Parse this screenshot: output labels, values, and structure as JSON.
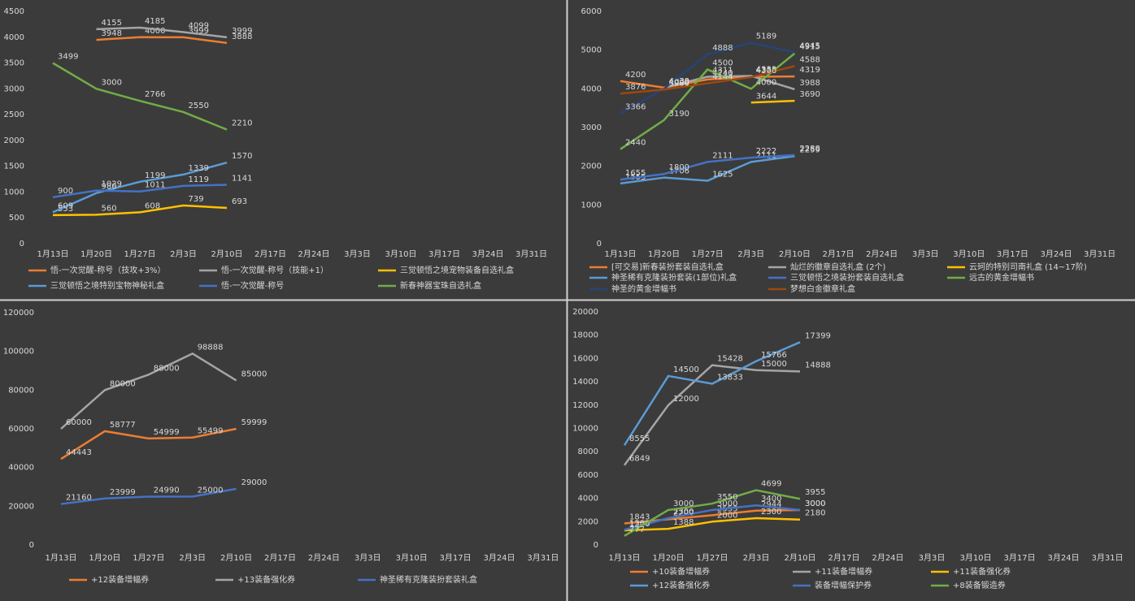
{
  "chart_data": [
    {
      "type": "line",
      "categories": [
        "1月13日",
        "1月20日",
        "1月27日",
        "2月3日",
        "2月10日",
        "2月17日",
        "2月24日",
        "3月3日",
        "3月10日",
        "3月17日",
        "3月24日",
        "3月31日"
      ],
      "ylim": [
        0,
        4500
      ],
      "yticks": [
        0,
        500,
        1000,
        1500,
        2000,
        2500,
        3000,
        3500,
        4000,
        4500
      ],
      "series": [
        {
          "name": "悟-一次觉醒-称号（技攻+3%）",
          "color": "#ed7d31",
          "values": [
            null,
            3948,
            4000,
            3999,
            3888,
            null,
            null,
            null,
            null,
            null,
            null,
            null
          ]
        },
        {
          "name": "悟-一次觉醒-称号（技能+1）",
          "color": "#a5a5a5",
          "values": [
            null,
            4155,
            4185,
            4099,
            3999,
            null,
            null,
            null,
            null,
            null,
            null,
            null
          ]
        },
        {
          "name": "三觉顿悟之境宠物装备自选礼盒",
          "color": "#ffc000",
          "values": [
            553,
            560,
            608,
            739,
            693,
            null,
            null,
            null,
            null,
            null,
            null,
            null
          ]
        },
        {
          "name": "三觉顿悟之境特别宝物神秘礼盒",
          "color": "#5b9bd5",
          "values": [
            609,
            980,
            1199,
            1339,
            1570,
            null,
            null,
            null,
            null,
            null,
            null,
            null
          ]
        },
        {
          "name": "悟-一次觉醒-称号",
          "color": "#4472c4",
          "values": [
            900,
            1029,
            1011,
            1119,
            1141,
            null,
            null,
            null,
            null,
            null,
            null,
            null
          ]
        },
        {
          "name": "新春神器宝珠自选礼盒",
          "color": "#70ad47",
          "values": [
            3499,
            3000,
            2766,
            2550,
            2210,
            null,
            null,
            null,
            null,
            null,
            null,
            null
          ]
        }
      ]
    },
    {
      "type": "line",
      "categories": [
        "1月13日",
        "1月20日",
        "1月27日",
        "2月3日",
        "2月10日",
        "2月17日",
        "2月24日",
        "3月3日",
        "3月10日",
        "3月17日",
        "3月24日",
        "3月31日"
      ],
      "ylim": [
        0,
        6000
      ],
      "yticks": [
        0,
        1000,
        2000,
        3000,
        4000,
        5000,
        6000
      ],
      "series": [
        {
          "name": "[可交易]新春装扮套装自选礼盒",
          "color": "#ed7d31",
          "values": [
            4200,
            4030,
            4240,
            4311,
            4319,
            null,
            null,
            null,
            null,
            null,
            null,
            null
          ]
        },
        {
          "name": "灿烂的徽章自选礼盒 (2个)",
          "color": "#a5a5a5",
          "values": [
            null,
            4030,
            4311,
            4333,
            3988,
            null,
            null,
            null,
            null,
            null,
            null,
            null
          ]
        },
        {
          "name": "云珂的特别司南礼盒 (14~17阶)",
          "color": "#ffc000",
          "values": [
            null,
            null,
            null,
            3644,
            3690,
            null,
            null,
            null,
            null,
            null,
            null,
            null
          ]
        },
        {
          "name": "神圣稀有克隆装扮套装(1部位)礼盒",
          "color": "#5b9bd5",
          "values": [
            1555,
            1706,
            1625,
            2111,
            2259,
            null,
            null,
            null,
            null,
            null,
            null,
            null
          ]
        },
        {
          "name": "三觉顿悟之境装扮套装自选礼盒",
          "color": "#4472c4",
          "values": [
            1655,
            1800,
            2111,
            2222,
            2288,
            null,
            null,
            null,
            null,
            null,
            null,
            null
          ]
        },
        {
          "name": "远古的黄金增幅书",
          "color": "#70ad47",
          "values": [
            2440,
            3190,
            4500,
            4000,
            4915,
            null,
            null,
            null,
            null,
            null,
            null,
            null
          ]
        },
        {
          "name": "神圣的黄金增幅书",
          "color": "#264478",
          "values": [
            3366,
            4000,
            4888,
            5189,
            4945,
            null,
            null,
            null,
            null,
            null,
            null,
            null
          ]
        },
        {
          "name": "梦想白金徽章礼盒",
          "color": "#9e480e",
          "values": [
            3876,
            3980,
            4144,
            4300,
            4588,
            null,
            null,
            null,
            null,
            null,
            null,
            null
          ]
        }
      ]
    },
    {
      "type": "line",
      "categories": [
        "1月13日",
        "1月20日",
        "1月27日",
        "2月3日",
        "2月10日",
        "2月17日",
        "2月24日",
        "3月3日",
        "3月10日",
        "3月17日",
        "3月24日",
        "3月31日"
      ],
      "ylim": [
        0,
        120000
      ],
      "yticks": [
        0,
        20000,
        40000,
        60000,
        80000,
        100000,
        120000
      ],
      "series": [
        {
          "name": "+12装备增幅券",
          "color": "#ed7d31",
          "values": [
            44443,
            58777,
            54999,
            55499,
            59999,
            null,
            null,
            null,
            null,
            null,
            null,
            null
          ]
        },
        {
          "name": "+13装备强化券",
          "color": "#a5a5a5",
          "values": [
            60000,
            80000,
            88000,
            98888,
            85000,
            null,
            null,
            null,
            null,
            null,
            null,
            null
          ]
        },
        {
          "name": "神圣稀有克隆装扮套装礼盒",
          "color": "#4472c4",
          "values": [
            21160,
            23999,
            24990,
            25000,
            29000,
            null,
            null,
            null,
            null,
            null,
            null,
            null
          ]
        }
      ]
    },
    {
      "type": "line",
      "categories": [
        "1月13日",
        "1月20日",
        "1月27日",
        "2月3日",
        "2月10日",
        "2月17日",
        "2月24日",
        "3月3日",
        "3月10日",
        "3月17日",
        "3月24日",
        "3月31日"
      ],
      "ylim": [
        0,
        20000
      ],
      "yticks": [
        0,
        2000,
        4000,
        6000,
        8000,
        10000,
        12000,
        14000,
        16000,
        18000,
        20000
      ],
      "series": [
        {
          "name": "+10装备增幅券",
          "color": "#ed7d31",
          "values": [
            1843,
            2200,
            2553,
            2944,
            3000,
            null,
            null,
            null,
            null,
            null,
            null,
            null
          ]
        },
        {
          "name": "+11装备增幅券",
          "color": "#a5a5a5",
          "values": [
            6849,
            12000,
            15428,
            15000,
            14888,
            null,
            null,
            null,
            null,
            null,
            null,
            null
          ]
        },
        {
          "name": "+11装备强化券",
          "color": "#ffc000",
          "values": [
            1250,
            1388,
            2000,
            2300,
            2180,
            null,
            null,
            null,
            null,
            null,
            null,
            null
          ]
        },
        {
          "name": "+12装备强化券",
          "color": "#5b9bd5",
          "values": [
            8555,
            14500,
            13833,
            15766,
            17399,
            null,
            null,
            null,
            null,
            null,
            null,
            null
          ]
        },
        {
          "name": "装备增幅保护券",
          "color": "#4472c4",
          "values": [
            1300,
            2300,
            3000,
            3400,
            3000,
            null,
            null,
            null,
            null,
            null,
            null,
            null
          ]
        },
        {
          "name": "+8装备锻造券",
          "color": "#70ad47",
          "values": [
            777,
            3000,
            3550,
            4699,
            3955,
            null,
            null,
            null,
            null,
            null,
            null,
            null
          ]
        }
      ]
    }
  ]
}
